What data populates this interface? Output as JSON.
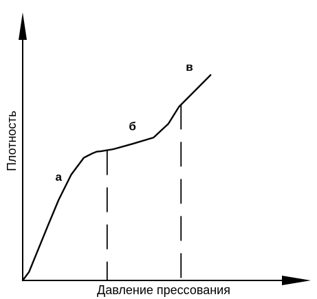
{
  "chart_data": {
    "type": "line",
    "title": "",
    "xlabel": "Давление прессования",
    "ylabel": "Плотность",
    "grid": false,
    "legend": "none",
    "axes": {
      "x_ticks": false,
      "y_ticks": false,
      "arrows": true
    },
    "xlim": [
      0,
      10
    ],
    "ylim": [
      0,
      10
    ],
    "series": [
      {
        "values": [
          {
            "x": 0.0,
            "y": 0.0
          },
          {
            "x": 0.3,
            "y": 0.4
          },
          {
            "x": 1.2,
            "y": 2.6
          },
          {
            "x": 1.7,
            "y": 3.8
          },
          {
            "x": 2.3,
            "y": 5.0
          },
          {
            "x": 2.9,
            "y": 5.8
          },
          {
            "x": 3.3,
            "y": 6.0
          },
          {
            "x": 3.5,
            "y": 6.08
          },
          {
            "x": 3.7,
            "y": 6.1
          },
          {
            "x": 4.3,
            "y": 6.2
          },
          {
            "x": 5.2,
            "y": 6.45
          },
          {
            "x": 6.2,
            "y": 6.75
          },
          {
            "x": 6.9,
            "y": 7.4
          },
          {
            "x": 7.4,
            "y": 8.2
          },
          {
            "x": 8.2,
            "y": 9.0
          },
          {
            "x": 8.9,
            "y": 9.7
          }
        ]
      }
    ],
    "guides": [
      {
        "x": 4.0
      },
      {
        "x": 7.5
      }
    ],
    "annotations": [
      {
        "text": "а",
        "x": 1.7,
        "y": 4.7
      },
      {
        "text": "б",
        "x": 5.2,
        "y": 7.1
      },
      {
        "text": "в",
        "x": 7.9,
        "y": 9.9
      }
    ]
  }
}
